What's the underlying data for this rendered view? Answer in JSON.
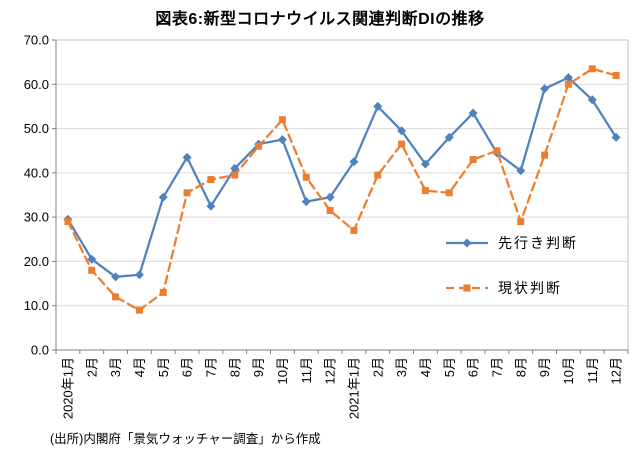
{
  "source": "(出所)内閣府「景気ウォッチャー調査」から作成",
  "chart_data": {
    "type": "line",
    "title": "図表6:新型コロナウイルス関連判断DIの推移",
    "categories": [
      "2020年1月",
      "2月",
      "3月",
      "4月",
      "5月",
      "6月",
      "7月",
      "8月",
      "9月",
      "10月",
      "11月",
      "12月",
      "2021年1月",
      "2月",
      "3月",
      "4月",
      "5月",
      "6月",
      "7月",
      "8月",
      "9月",
      "10月",
      "11月",
      "12月"
    ],
    "series": [
      {
        "name": "先行き判断",
        "color": "#4F81BD",
        "marker": "diamond",
        "line": "solid",
        "values": [
          29.5,
          20.5,
          16.5,
          17.0,
          34.5,
          43.5,
          32.5,
          41.0,
          46.5,
          47.5,
          33.5,
          34.5,
          42.5,
          55.0,
          49.5,
          42.0,
          48.0,
          53.5,
          44.5,
          40.5,
          59.0,
          61.5,
          56.5,
          48.0
        ]
      },
      {
        "name": "現状判断",
        "color": "#ED7D31",
        "marker": "square",
        "line": "dashed",
        "values": [
          29.0,
          18.0,
          12.0,
          9.0,
          13.0,
          35.5,
          38.5,
          39.5,
          46.0,
          52.0,
          39.0,
          31.5,
          27.0,
          39.5,
          46.5,
          36.0,
          35.5,
          43.0,
          45.0,
          29.0,
          44.0,
          60.0,
          63.5,
          62.0
        ]
      }
    ],
    "ylim": [
      0,
      70
    ],
    "ytick_step": 10,
    "ytick_labels": [
      "0.0",
      "10.0",
      "20.0",
      "30.0",
      "40.0",
      "50.0",
      "60.0",
      "70.0"
    ],
    "xlabel": "",
    "ylabel": "",
    "grid": true,
    "legend_position": "inside-right"
  }
}
